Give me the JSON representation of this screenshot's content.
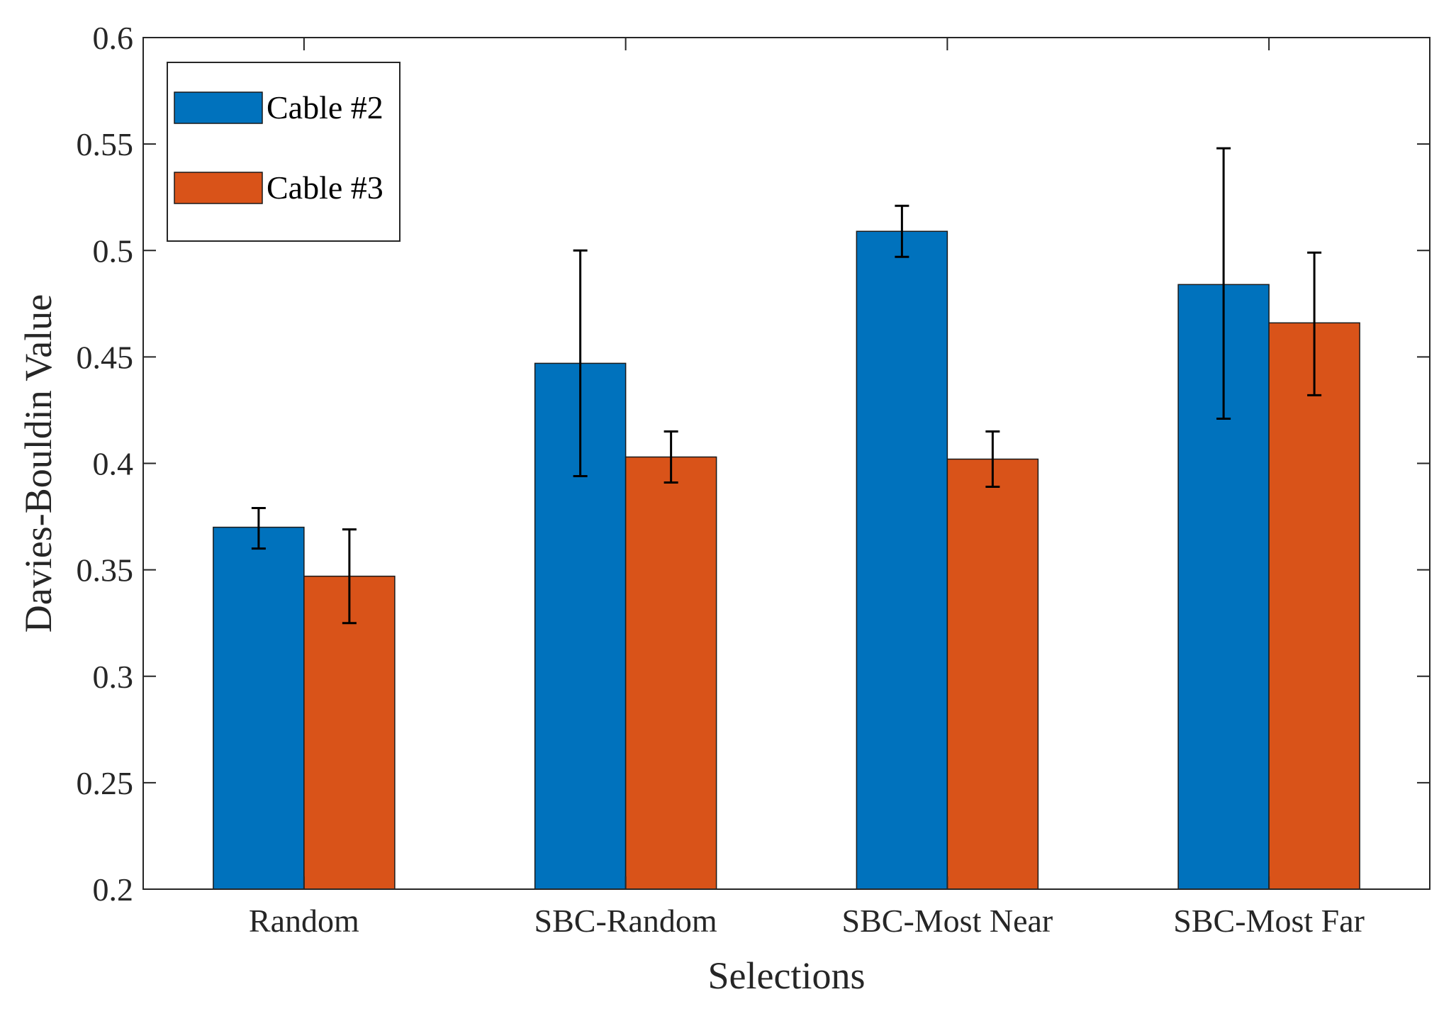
{
  "chart_data": {
    "type": "bar",
    "title": "",
    "xlabel": "Selections",
    "ylabel": "Davies-Bouldin Value",
    "categories": [
      "Random",
      "SBC-Random",
      "SBC-Most Near",
      "SBC-Most Far"
    ],
    "ylim": [
      0.2,
      0.6
    ],
    "yticks": [
      0.2,
      0.25,
      0.3,
      0.35,
      0.4,
      0.45,
      0.5,
      0.55,
      0.6
    ],
    "ytick_labels": [
      "0.2",
      "0.25",
      "0.3",
      "0.35",
      "0.4",
      "0.45",
      "0.5",
      "0.55",
      "0.6"
    ],
    "grid": false,
    "legend_position": "top-left",
    "series": [
      {
        "name": "Cable #2",
        "color": "#0072BD",
        "values": [
          0.37,
          0.447,
          0.509,
          0.484
        ],
        "err_low": [
          0.36,
          0.394,
          0.497,
          0.421
        ],
        "err_high": [
          0.379,
          0.5,
          0.521,
          0.548
        ]
      },
      {
        "name": "Cable #3",
        "color": "#D95319",
        "values": [
          0.347,
          0.403,
          0.402,
          0.466
        ],
        "err_low": [
          0.325,
          0.391,
          0.389,
          0.432
        ],
        "err_high": [
          0.369,
          0.415,
          0.415,
          0.499
        ]
      }
    ]
  }
}
